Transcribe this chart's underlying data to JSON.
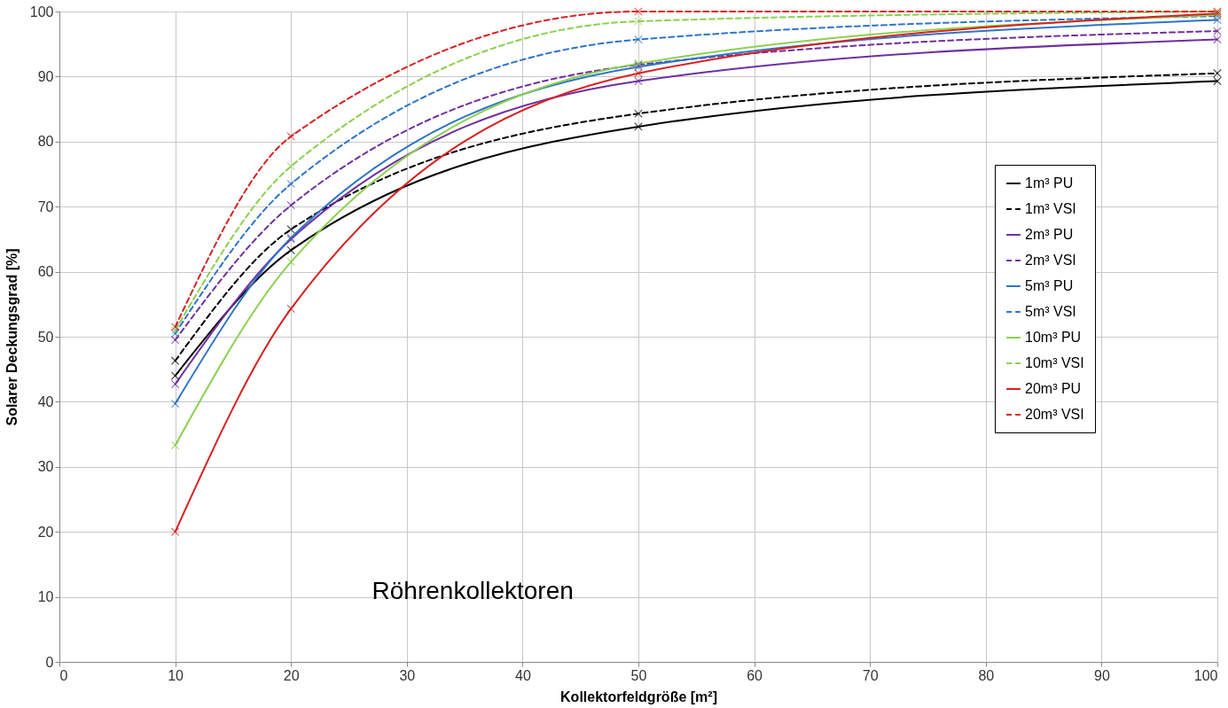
{
  "chart_data": {
    "type": "line",
    "xlabel": "Kollektorfeldgröße  [m²]",
    "ylabel": "Solarer Deckungsgrad  [%]",
    "x": [
      10,
      20,
      50,
      100
    ],
    "xlim": [
      0,
      100
    ],
    "xticks": [
      0,
      10,
      20,
      30,
      40,
      50,
      60,
      70,
      80,
      90,
      100
    ],
    "ylim": [
      0,
      100
    ],
    "yticks": [
      0,
      10,
      20,
      30,
      40,
      50,
      60,
      70,
      80,
      90,
      100
    ],
    "grid": true,
    "legend": "right",
    "marker": "cross",
    "annotations": [
      "Röhrenkollektoren"
    ],
    "series": [
      {
        "name": "1m³ PU",
        "color": "#000000",
        "line_style": "solid",
        "values": [
          44,
          63.3,
          82.3,
          89.3
        ]
      },
      {
        "name": "1m³ VSI",
        "color": "#000000",
        "line_style": "dashed",
        "values": [
          46.3,
          66.5,
          84.3,
          90.5
        ]
      },
      {
        "name": "2m³ PU",
        "color": "#7030a0",
        "line_style": "solid",
        "values": [
          42.7,
          65,
          89.3,
          95.7
        ]
      },
      {
        "name": "2m³ VSI",
        "color": "#7030a0",
        "line_style": "dashed",
        "values": [
          49.5,
          70.2,
          91.8,
          97
        ]
      },
      {
        "name": "5m³ PU",
        "color": "#2e75c9",
        "line_style": "solid",
        "values": [
          39.7,
          65.2,
          91.5,
          98.7
        ]
      },
      {
        "name": "5m³ VSI",
        "color": "#2e75c9",
        "line_style": "dashed",
        "values": [
          50.5,
          73.5,
          95.7,
          99.3
        ]
      },
      {
        "name": "10m³ PU",
        "color": "#8cd050",
        "line_style": "solid",
        "values": [
          33.3,
          61.5,
          92,
          99.5
        ]
      },
      {
        "name": "10m³ VSI",
        "color": "#8cd050",
        "line_style": "dashed",
        "values": [
          51,
          76.2,
          98.5,
          100
        ]
      },
      {
        "name": "20m³ PU",
        "color": "#d82020",
        "line_style": "solid",
        "values": [
          20,
          54.3,
          90.5,
          99.7
        ]
      },
      {
        "name": "20m³ VSI",
        "color": "#d82020",
        "line_style": "dashed",
        "values": [
          51.5,
          80.8,
          100,
          100
        ]
      }
    ]
  }
}
